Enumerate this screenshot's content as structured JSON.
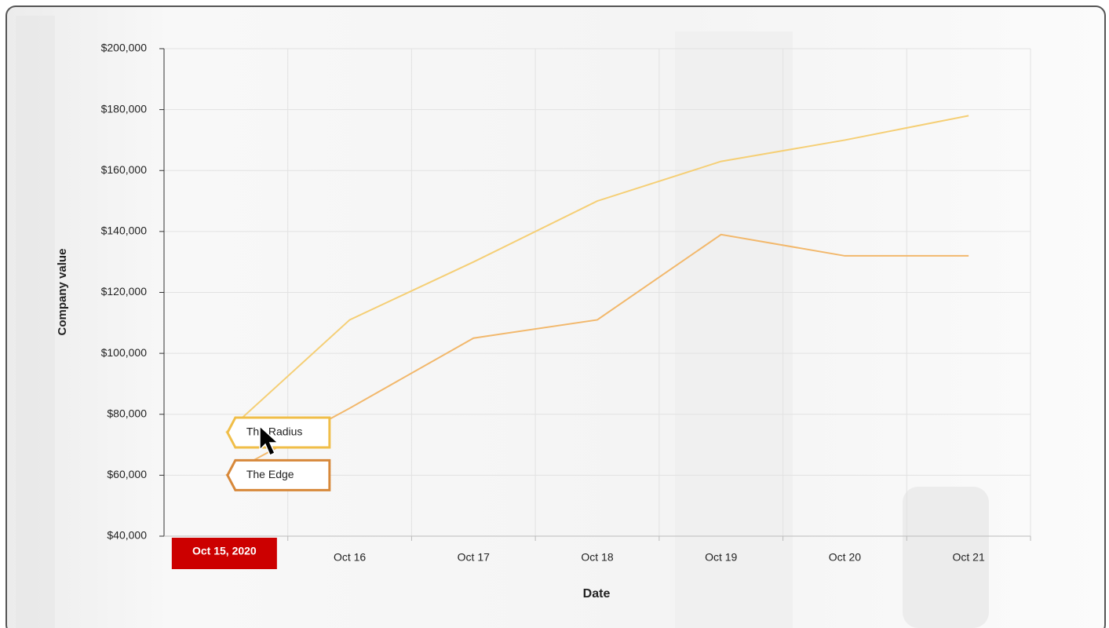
{
  "chart_data": {
    "type": "line",
    "x_label": "Date",
    "y_label": "Company value",
    "categories": [
      "Oct 15, 2020",
      "Oct 16",
      "Oct 17",
      "Oct 18",
      "Oct 19",
      "Oct 20",
      "Oct 21"
    ],
    "series": [
      {
        "name": "The Radius",
        "color": "#f5cf76",
        "border": "#f0be48",
        "values": [
          74000,
          111000,
          130000,
          150000,
          163000,
          170000,
          178000
        ]
      },
      {
        "name": "The Edge",
        "color": "#f2b86c",
        "border": "#d7883a",
        "values": [
          60000,
          82000,
          105000,
          111000,
          139000,
          132000,
          132000
        ]
      }
    ],
    "ylim": [
      40000,
      200000
    ],
    "yticks": [
      {
        "value": 40000,
        "label": "$40,000"
      },
      {
        "value": 60000,
        "label": "$60,000"
      },
      {
        "value": 80000,
        "label": "$80,000"
      },
      {
        "value": 100000,
        "label": "$100,000"
      },
      {
        "value": 120000,
        "label": "$120,000"
      },
      {
        "value": 140000,
        "label": "$140,000"
      },
      {
        "value": 160000,
        "label": "$160,000"
      },
      {
        "value": 180000,
        "label": "$180,000"
      },
      {
        "value": 200000,
        "label": "$200,000"
      }
    ],
    "grid": true,
    "highlight_index": 0,
    "highlight_color": "#cc0000"
  }
}
